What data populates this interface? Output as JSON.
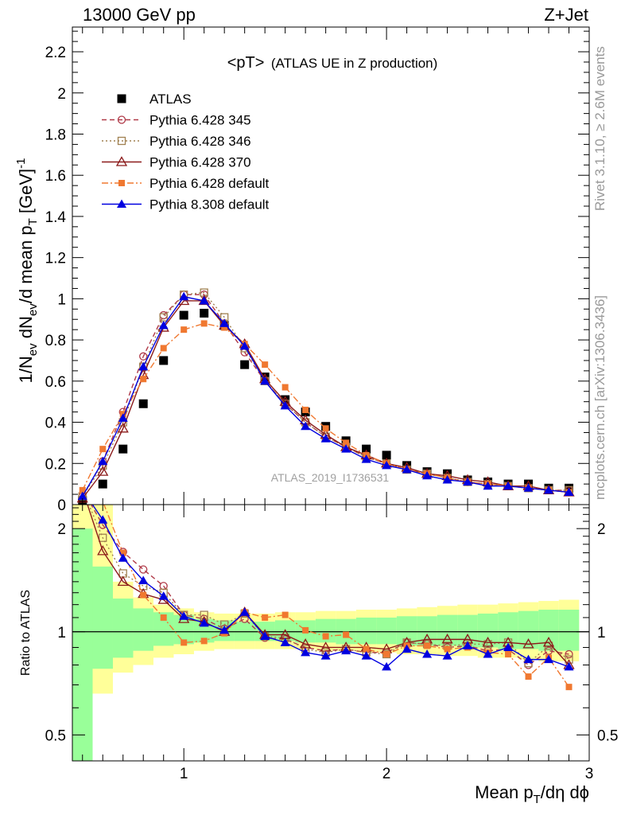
{
  "header": {
    "left": "13000 GeV pp",
    "right": "Z+Jet"
  },
  "side_labels": {
    "rivet": "Rivet 3.1.10, ≥ 2.6M events",
    "mcplots": "mcplots.cern.ch [arXiv:1306.3436]"
  },
  "chart_data": [
    {
      "type": "line",
      "title_main": "<pT>",
      "title_sub": "(ATLAS UE in Z production)",
      "watermark": "ATLAS_2019_I1736531",
      "ylabel": "1/N_ev dN_ev/d mean p_T [GeV]^-1",
      "xlabel": "Mean p_T/dη dφ",
      "xlim": [
        0.45,
        3.0
      ],
      "ylim": [
        0,
        2.32
      ],
      "x_ticks": [
        "1",
        "2",
        "3"
      ],
      "y_ticks": [
        "0",
        "0.2",
        "0.4",
        "0.6",
        "0.8",
        "1",
        "1.2",
        "1.4",
        "1.6",
        "1.8",
        "2",
        "2.2"
      ],
      "x": [
        0.5,
        0.6,
        0.7,
        0.8,
        0.9,
        1.0,
        1.1,
        1.2,
        1.3,
        1.4,
        1.5,
        1.6,
        1.7,
        1.8,
        1.9,
        2.0,
        2.1,
        2.2,
        2.3,
        2.4,
        2.5,
        2.6,
        2.7,
        2.8,
        2.9
      ],
      "series": [
        {
          "name": "ATLAS",
          "color": "#000000",
          "marker": "square-filled",
          "line": "none",
          "values": [
            0.02,
            0.1,
            0.27,
            0.49,
            0.7,
            0.92,
            0.93,
            0.87,
            0.68,
            0.62,
            0.51,
            0.45,
            0.38,
            0.31,
            0.27,
            0.24,
            0.19,
            0.16,
            0.15,
            0.12,
            0.11,
            0.1,
            0.1,
            0.08,
            0.08
          ]
        },
        {
          "name": "Pythia 6.428 345",
          "color": "#b03a48",
          "marker": "circle-open",
          "line": "dashed",
          "values": [
            0.04,
            0.21,
            0.45,
            0.72,
            0.92,
            1.02,
            1.02,
            0.88,
            0.74,
            0.6,
            0.49,
            0.4,
            0.33,
            0.28,
            0.23,
            0.2,
            0.17,
            0.15,
            0.13,
            0.11,
            0.1,
            0.09,
            0.08,
            0.07,
            0.07
          ]
        },
        {
          "name": "Pythia 6.428 346",
          "color": "#a08050",
          "marker": "square-open",
          "line": "dotted",
          "values": [
            0.04,
            0.19,
            0.4,
            0.67,
            0.91,
            1.02,
            1.03,
            0.91,
            0.76,
            0.6,
            0.49,
            0.4,
            0.33,
            0.28,
            0.23,
            0.2,
            0.17,
            0.15,
            0.13,
            0.11,
            0.1,
            0.09,
            0.08,
            0.07,
            0.07
          ]
        },
        {
          "name": "Pythia 6.428 370",
          "color": "#8b1a1a",
          "marker": "triangle-open",
          "line": "solid",
          "values": [
            0.03,
            0.16,
            0.37,
            0.63,
            0.86,
            0.99,
            0.99,
            0.87,
            0.78,
            0.61,
            0.5,
            0.41,
            0.34,
            0.28,
            0.24,
            0.2,
            0.18,
            0.15,
            0.14,
            0.12,
            0.11,
            0.09,
            0.09,
            0.07,
            0.06
          ]
        },
        {
          "name": "Pythia 6.428 default",
          "color": "#f07830",
          "marker": "square-filled-small",
          "line": "dashdot",
          "values": [
            0.07,
            0.27,
            0.44,
            0.61,
            0.76,
            0.85,
            0.88,
            0.86,
            0.78,
            0.68,
            0.57,
            0.46,
            0.37,
            0.3,
            0.24,
            0.2,
            0.17,
            0.15,
            0.13,
            0.11,
            0.1,
            0.09,
            0.08,
            0.07,
            0.06
          ]
        },
        {
          "name": "Pythia 8.308 default",
          "color": "#0000e0",
          "marker": "triangle-filled",
          "line": "solid",
          "values": [
            0.04,
            0.21,
            0.42,
            0.67,
            0.87,
            1.01,
            0.99,
            0.88,
            0.77,
            0.6,
            0.48,
            0.38,
            0.32,
            0.27,
            0.22,
            0.19,
            0.17,
            0.14,
            0.12,
            0.11,
            0.09,
            0.09,
            0.08,
            0.07,
            0.06
          ]
        }
      ]
    },
    {
      "type": "line",
      "ylabel": "Ratio to ATLAS",
      "xlabel": "Mean p_T/dη dφ",
      "xlim": [
        0.45,
        3.0
      ],
      "ylim": [
        0.42,
        2.35
      ],
      "y_scale": "log",
      "y_ticks": [
        "0.5",
        "1",
        "2"
      ],
      "x": [
        0.5,
        0.6,
        0.7,
        0.8,
        0.9,
        1.0,
        1.1,
        1.2,
        1.3,
        1.4,
        1.5,
        1.6,
        1.7,
        1.8,
        1.9,
        2.0,
        2.1,
        2.2,
        2.3,
        2.4,
        2.5,
        2.6,
        2.7,
        2.8,
        2.9
      ],
      "band_green": {
        "color": "#99ff99",
        "upper": [
          2.0,
          1.55,
          1.25,
          1.17,
          1.14,
          1.12,
          1.09,
          1.08,
          1.07,
          1.07,
          1.08,
          1.08,
          1.09,
          1.09,
          1.1,
          1.1,
          1.11,
          1.11,
          1.12,
          1.12,
          1.13,
          1.14,
          1.15,
          1.16,
          1.16
        ],
        "lower": [
          0.4,
          0.78,
          0.84,
          0.88,
          0.91,
          0.92,
          0.93,
          0.94,
          0.94,
          0.94,
          0.94,
          0.93,
          0.93,
          0.92,
          0.92,
          0.92,
          0.91,
          0.91,
          0.91,
          0.9,
          0.9,
          0.89,
          0.89,
          0.88,
          0.88
        ]
      },
      "band_yellow": {
        "color": "#ffff99",
        "upper": [
          2.35,
          2.35,
          1.4,
          1.26,
          1.2,
          1.17,
          1.14,
          1.13,
          1.13,
          1.13,
          1.14,
          1.14,
          1.15,
          1.15,
          1.16,
          1.16,
          1.17,
          1.18,
          1.19,
          1.2,
          1.2,
          1.21,
          1.22,
          1.23,
          1.24
        ],
        "lower": [
          0.4,
          0.66,
          0.76,
          0.8,
          0.84,
          0.86,
          0.88,
          0.89,
          0.89,
          0.89,
          0.89,
          0.89,
          0.88,
          0.88,
          0.87,
          0.87,
          0.86,
          0.86,
          0.85,
          0.85,
          0.84,
          0.84,
          0.83,
          0.82,
          0.82
        ]
      },
      "series": [
        {
          "name": "Pythia 6.428 345",
          "color": "#b03a48",
          "marker": "circle-open",
          "line": "dashed",
          "values": [
            2.6,
            2.05,
            1.71,
            1.52,
            1.36,
            1.12,
            1.09,
            1.02,
            1.09,
            0.96,
            0.95,
            0.9,
            0.88,
            0.89,
            0.87,
            0.87,
            0.93,
            0.92,
            0.9,
            0.91,
            0.88,
            0.89,
            0.8,
            0.88,
            0.86
          ]
        },
        {
          "name": "Pythia 6.428 346",
          "color": "#a08050",
          "marker": "square-open",
          "line": "dotted",
          "values": [
            2.6,
            1.88,
            1.48,
            1.36,
            1.3,
            1.12,
            1.12,
            1.05,
            1.13,
            0.97,
            0.96,
            0.89,
            0.87,
            0.89,
            0.87,
            0.86,
            0.93,
            0.92,
            0.91,
            0.92,
            0.92,
            0.93,
            0.81,
            0.91,
            0.83
          ]
        },
        {
          "name": "Pythia 6.428 370",
          "color": "#8b1a1a",
          "marker": "triangle-open",
          "line": "solid",
          "values": [
            2.6,
            1.72,
            1.4,
            1.29,
            1.24,
            1.09,
            1.07,
            1.0,
            1.14,
            0.98,
            0.98,
            0.92,
            0.9,
            0.9,
            0.9,
            0.89,
            0.93,
            0.95,
            0.95,
            0.95,
            0.93,
            0.93,
            0.92,
            0.93,
            0.8
          ]
        },
        {
          "name": "Pythia 6.428 default",
          "color": "#f07830",
          "marker": "square-filled-small",
          "line": "dashdot",
          "values": [
            2.6,
            2.4,
            1.7,
            1.28,
            1.1,
            0.93,
            0.94,
            0.99,
            1.14,
            1.1,
            1.12,
            1.01,
            0.97,
            0.98,
            0.89,
            0.86,
            0.91,
            0.91,
            0.89,
            0.9,
            0.87,
            0.86,
            0.74,
            0.84,
            0.69
          ]
        },
        {
          "name": "Pythia 8.308 default",
          "color": "#0000e0",
          "marker": "triangle-filled",
          "line": "solid",
          "values": [
            2.6,
            2.12,
            1.64,
            1.41,
            1.27,
            1.11,
            1.06,
            1.01,
            1.14,
            0.97,
            0.93,
            0.87,
            0.85,
            0.88,
            0.85,
            0.79,
            0.89,
            0.86,
            0.85,
            0.91,
            0.86,
            0.9,
            0.83,
            0.83,
            0.79
          ]
        }
      ]
    }
  ]
}
